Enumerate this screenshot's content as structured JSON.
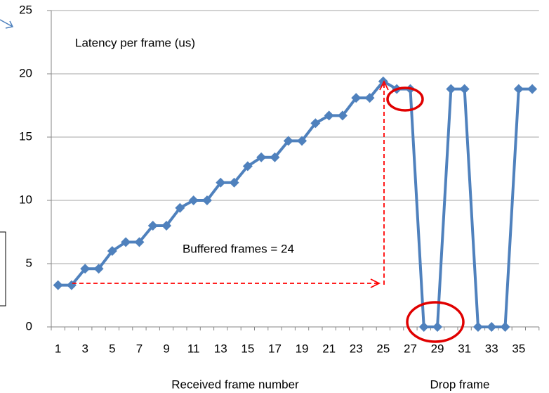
{
  "chart_data": {
    "type": "line",
    "categories": [
      1,
      null,
      3,
      null,
      5,
      null,
      7,
      null,
      9,
      null,
      11,
      null,
      13,
      null,
      15,
      null,
      17,
      null,
      19,
      null,
      21,
      null,
      23,
      null,
      25,
      null,
      27,
      null,
      29,
      null,
      31,
      null,
      33,
      null,
      35,
      null
    ],
    "series": [
      {
        "name": "Latency per frame (us)",
        "color": "#4f81bd",
        "values": [
          3.3,
          3.3,
          4.6,
          4.6,
          6.0,
          6.7,
          6.7,
          8.0,
          8.0,
          9.4,
          10.0,
          10.0,
          11.4,
          11.4,
          12.7,
          13.4,
          13.4,
          14.7,
          14.7,
          16.1,
          16.7,
          16.7,
          18.1,
          18.1,
          19.4,
          18.8,
          18.8,
          0,
          0,
          18.8,
          18.8,
          0,
          0,
          0,
          18.8,
          18.8
        ]
      }
    ],
    "ylim": [
      0,
      25
    ],
    "yticks": [
      0,
      5,
      10,
      15,
      20,
      25
    ],
    "grid": true,
    "x_label": "Received  frame  number",
    "annotations": [
      "Buffered  frames  = 24",
      "Drop  frame"
    ]
  }
}
